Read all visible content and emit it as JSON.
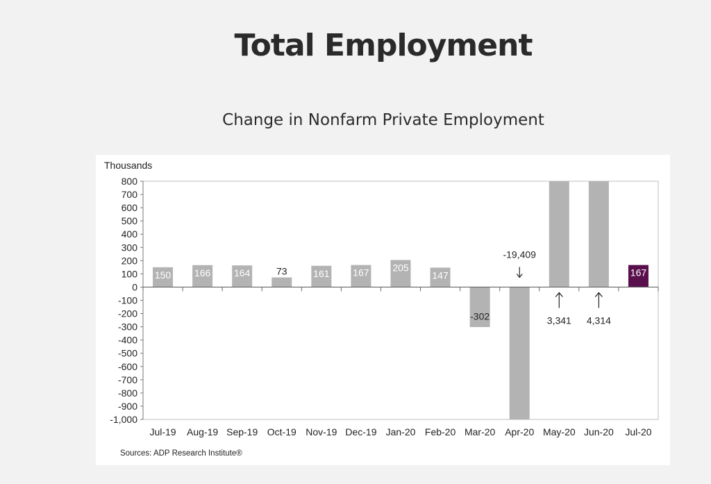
{
  "header": {
    "title": "Total Employment",
    "subtitle": "Change in Nonfarm Private Employment"
  },
  "chart_data": {
    "type": "bar",
    "title": "Change in Nonfarm Private Employment",
    "ylabel": "Thousands",
    "xlabel": "",
    "categories": [
      "Jul-19",
      "Aug-19",
      "Sep-19",
      "Oct-19",
      "Nov-19",
      "Dec-19",
      "Jan-20",
      "Feb-20",
      "Mar-20",
      "Apr-20",
      "May-20",
      "Jun-20",
      "Jul-20"
    ],
    "values": [
      150,
      166,
      164,
      73,
      161,
      167,
      205,
      147,
      -302,
      -19409,
      3341,
      4314,
      167
    ],
    "data_labels": [
      "150",
      "166",
      "164",
      "73",
      "161",
      "167",
      "205",
      "147",
      "-302",
      "-19,409",
      "3,341",
      "4,314",
      "167"
    ],
    "ylim": [
      -1000,
      800
    ],
    "yticks": [
      800,
      700,
      600,
      500,
      400,
      300,
      200,
      100,
      0,
      -100,
      -200,
      -300,
      -400,
      -500,
      -600,
      -700,
      -800,
      -900,
      -1000
    ],
    "ytick_labels": [
      "800",
      "700",
      "600",
      "500",
      "400",
      "300",
      "200",
      "100",
      "0",
      "-100",
      "-200",
      "-300",
      "-400",
      "-500",
      "-600",
      "-700",
      "-800",
      "-900",
      "-1,000"
    ],
    "offscale_arrows": {
      "Apr-20": "down",
      "May-20": "up",
      "Jun-20": "up"
    },
    "highlight_category": "Jul-20",
    "bar_color": "#b3b3b3",
    "highlight_color": "#5a0f4d",
    "source": "Sources: ADP Research Institute®"
  }
}
